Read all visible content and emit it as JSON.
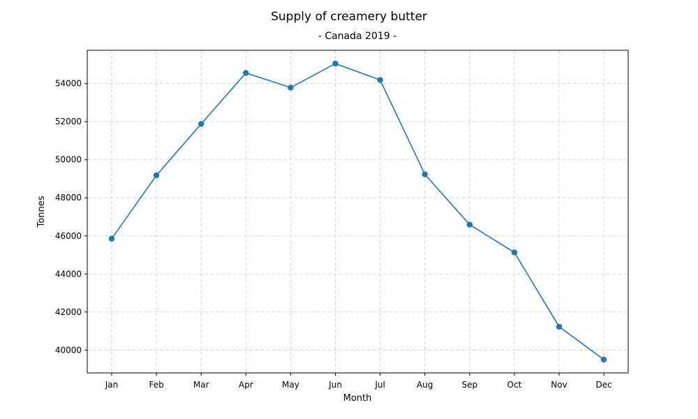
{
  "chart_data": {
    "type": "line",
    "title": "Supply of creamery butter",
    "subtitle": "- Canada 2019 -",
    "xlabel": "Month",
    "ylabel": "Tonnes",
    "categories": [
      "Jan",
      "Feb",
      "Mar",
      "Apr",
      "May",
      "Jun",
      "Jul",
      "Aug",
      "Sep",
      "Oct",
      "Nov",
      "Dec"
    ],
    "series": [
      {
        "values": [
          45850,
          49180,
          51880,
          54560,
          53790,
          55050,
          54190,
          49230,
          46590,
          45130,
          41230,
          39500
        ]
      }
    ],
    "yticks": [
      40000,
      42000,
      44000,
      46000,
      48000,
      50000,
      52000,
      54000
    ],
    "ylim": [
      38800,
      55750
    ],
    "grid": true,
    "colors": {
      "line": "#1f77b4",
      "grid": "#cccccc"
    }
  }
}
